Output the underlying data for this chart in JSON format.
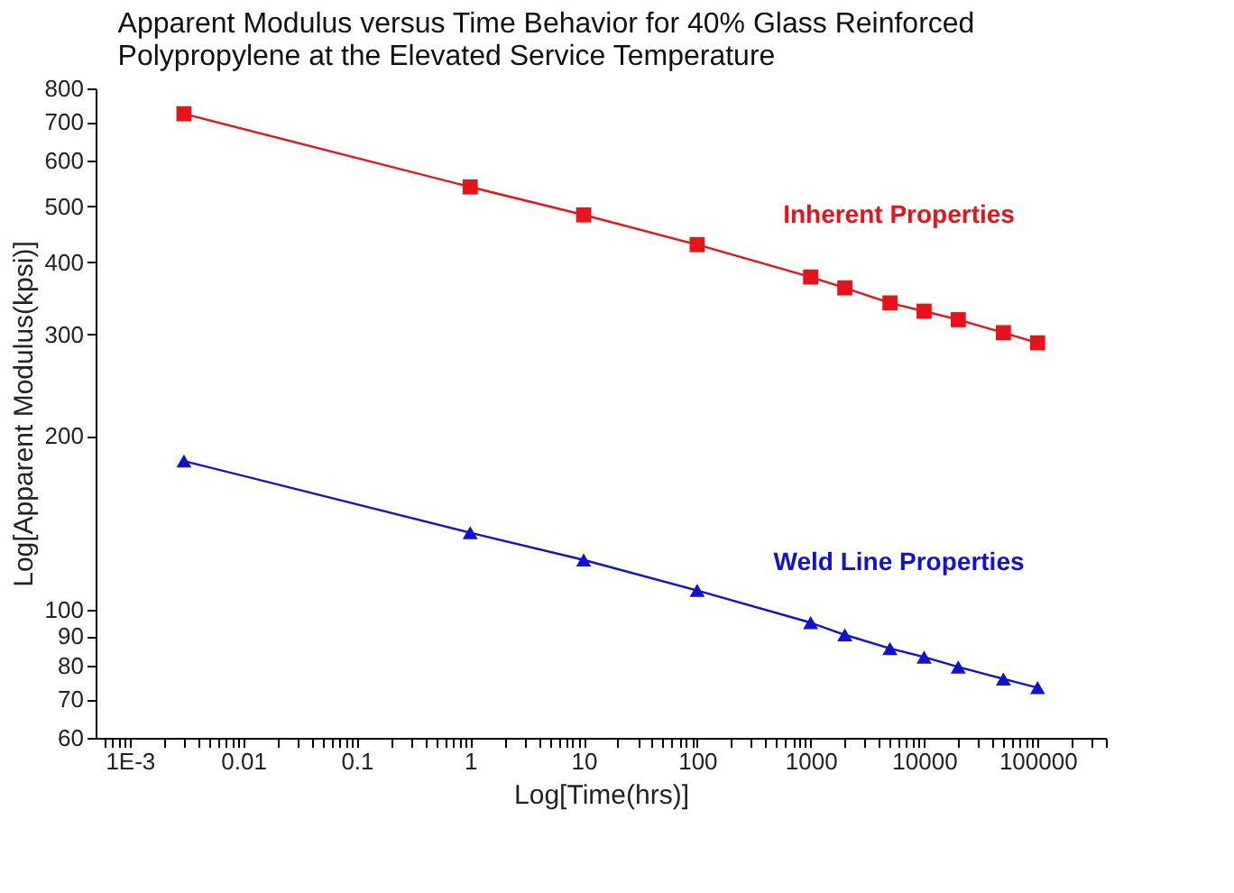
{
  "chart_data": {
    "type": "line",
    "title": "Apparent Modulus versus Time Behavior for 40% Glass Reinforced Polypropylene at the Elevated Service Temperature",
    "xlabel": "Log[Time(hrs)]",
    "ylabel": "Log[Apparent Modulus(kpsi)]",
    "x": [
      0.003,
      1,
      10,
      100,
      1000,
      2000,
      5000,
      10000,
      20000,
      50000,
      100000
    ],
    "series": [
      {
        "name": "Inherent Properties",
        "color": "#e8121b",
        "marker": "square",
        "values": [
          723,
          540,
          483,
          429,
          377,
          361,
          340,
          329,
          318,
          302,
          290
        ]
      },
      {
        "name": "Weld Line Properties",
        "color": "#1010d8",
        "marker": "triangle",
        "values": [
          181,
          136,
          122,
          108,
          95,
          90.5,
          85.7,
          82.8,
          79.6,
          75.9,
          73.3
        ]
      }
    ],
    "log": "xy",
    "grid": false,
    "legend": false,
    "xlim": [
      0.0005,
      400000
    ],
    "ylim": [
      60,
      800
    ],
    "xticks": [
      {
        "value": 0.0006,
        "label": null
      },
      {
        "value": 0.0007,
        "label": null
      },
      {
        "value": 0.0008,
        "label": null
      },
      {
        "value": 0.0009,
        "label": null
      },
      {
        "value": 0.001,
        "label": "1E-3"
      },
      {
        "value": 0.002,
        "label": null
      },
      {
        "value": 0.003,
        "label": null
      },
      {
        "value": 0.004,
        "label": null
      },
      {
        "value": 0.005,
        "label": null
      },
      {
        "value": 0.006,
        "label": null
      },
      {
        "value": 0.007,
        "label": null
      },
      {
        "value": 0.008,
        "label": null
      },
      {
        "value": 0.009,
        "label": null
      },
      0.01,
      {
        "value": 0.02,
        "label": null
      },
      {
        "value": 0.03,
        "label": null
      },
      {
        "value": 0.04,
        "label": null
      },
      {
        "value": 0.05,
        "label": null
      },
      {
        "value": 0.06,
        "label": null
      },
      {
        "value": 0.07,
        "label": null
      },
      {
        "value": 0.08,
        "label": null
      },
      {
        "value": 0.09,
        "label": null
      },
      0.1,
      {
        "value": 0.2,
        "label": null
      },
      {
        "value": 0.3,
        "label": null
      },
      {
        "value": 0.4,
        "label": null
      },
      {
        "value": 0.5,
        "label": null
      },
      {
        "value": 0.6,
        "label": null
      },
      {
        "value": 0.7,
        "label": null
      },
      {
        "value": 0.8,
        "label": null
      },
      {
        "value": 0.9,
        "label": null
      },
      1,
      {
        "value": 2,
        "label": null
      },
      {
        "value": 3,
        "label": null
      },
      {
        "value": 4,
        "label": null
      },
      {
        "value": 5,
        "label": null
      },
      {
        "value": 6,
        "label": null
      },
      {
        "value": 7,
        "label": null
      },
      {
        "value": 8,
        "label": null
      },
      {
        "value": 9,
        "label": null
      },
      10,
      {
        "value": 20,
        "label": null
      },
      {
        "value": 30,
        "label": null
      },
      {
        "value": 40,
        "label": null
      },
      {
        "value": 50,
        "label": null
      },
      {
        "value": 60,
        "label": null
      },
      {
        "value": 70,
        "label": null
      },
      {
        "value": 80,
        "label": null
      },
      {
        "value": 90,
        "label": null
      },
      100,
      {
        "value": 200,
        "label": null
      },
      {
        "value": 300,
        "label": null
      },
      {
        "value": 400,
        "label": null
      },
      {
        "value": 500,
        "label": null
      },
      {
        "value": 600,
        "label": null
      },
      {
        "value": 700,
        "label": null
      },
      {
        "value": 800,
        "label": null
      },
      {
        "value": 900,
        "label": null
      },
      1000,
      {
        "value": 2000,
        "label": null
      },
      {
        "value": 3000,
        "label": null
      },
      {
        "value": 4000,
        "label": null
      },
      {
        "value": 5000,
        "label": null
      },
      {
        "value": 6000,
        "label": null
      },
      {
        "value": 7000,
        "label": null
      },
      {
        "value": 8000,
        "label": null
      },
      {
        "value": 9000,
        "label": null
      },
      10000,
      {
        "value": 20000,
        "label": null
      },
      {
        "value": 30000,
        "label": null
      },
      {
        "value": 40000,
        "label": null
      },
      {
        "value": 50000,
        "label": null
      },
      {
        "value": 60000,
        "label": null
      },
      {
        "value": 70000,
        "label": null
      },
      {
        "value": 80000,
        "label": null
      },
      {
        "value": 90000,
        "label": null
      },
      100000,
      {
        "value": 200000,
        "label": null
      },
      {
        "value": 300000,
        "label": null
      },
      {
        "value": 400000,
        "label": null
      }
    ],
    "yticks": [
      60,
      70,
      80,
      90,
      100,
      200,
      300,
      400,
      500,
      600,
      700,
      800
    ]
  }
}
